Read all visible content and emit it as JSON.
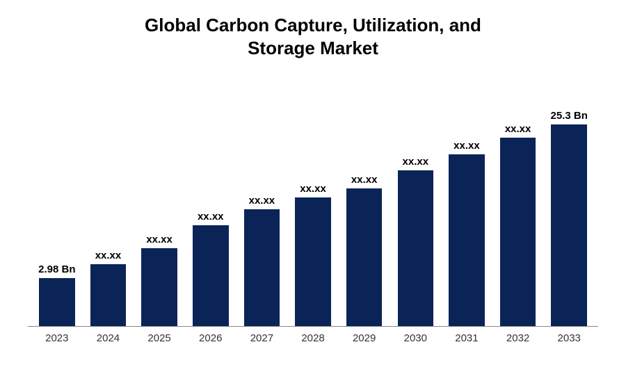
{
  "chart": {
    "type": "bar",
    "title_line1": "Global Carbon Capture, Utilization, and",
    "title_line2": "Storage Market",
    "title_fontsize": 26,
    "title_color": "#000000",
    "background_color": "#ffffff",
    "bar_color": "#0a2458",
    "axis_color": "#888888",
    "x_label_fontsize": 15,
    "x_label_color": "#333333",
    "bar_label_fontsize": 15,
    "bar_label_color": "#000000",
    "bar_width_pct": 70,
    "bars": [
      {
        "category": "2023",
        "label": "2.98 Bn",
        "height_pct": 21
      },
      {
        "category": "2024",
        "label": "xx.xx",
        "height_pct": 27
      },
      {
        "category": "2025",
        "label": "xx.xx",
        "height_pct": 34
      },
      {
        "category": "2026",
        "label": "xx.xx",
        "height_pct": 44
      },
      {
        "category": "2027",
        "label": "xx.xx",
        "height_pct": 51
      },
      {
        "category": "2028",
        "label": "xx.xx",
        "height_pct": 56
      },
      {
        "category": "2029",
        "label": "xx.xx",
        "height_pct": 60
      },
      {
        "category": "2030",
        "label": "xx.xx",
        "height_pct": 68
      },
      {
        "category": "2031",
        "label": "xx.xx",
        "height_pct": 75
      },
      {
        "category": "2032",
        "label": "xx.xx",
        "height_pct": 82
      },
      {
        "category": "2033",
        "label": "25.3 Bn",
        "height_pct": 88
      }
    ]
  }
}
